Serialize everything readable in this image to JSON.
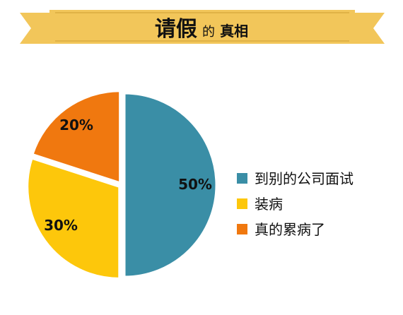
{
  "banner": {
    "title_main": "请假",
    "title_particle": "的",
    "title_rest": "真相"
  },
  "colors": {
    "banner": "#f2c65a",
    "banner_dark": "#d9ab3f",
    "banner_border": "#c9972d"
  },
  "chart_data": {
    "type": "pie",
    "title": "请假的真相",
    "slices": [
      {
        "label": "到别的公司面试",
        "value": 50,
        "value_label": "50%",
        "color": "#3a8ea6"
      },
      {
        "label": "装病",
        "value": 30,
        "value_label": "30%",
        "color": "#fdc70b"
      },
      {
        "label": "真的累病了",
        "value": 20,
        "value_label": "20%",
        "color": "#f0780f"
      }
    ],
    "legend_position": "right"
  }
}
